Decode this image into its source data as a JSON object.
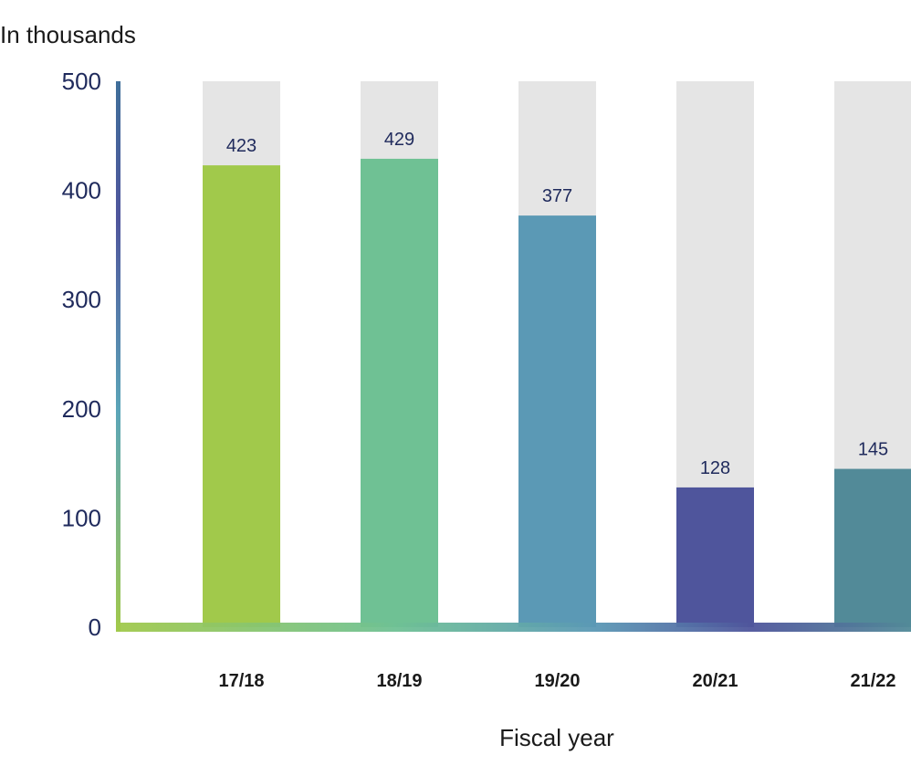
{
  "chart_data": {
    "type": "bar",
    "ylabel": "In thousands",
    "xlabel": "Fiscal year",
    "categories": [
      "17/18",
      "18/19",
      "19/20",
      "20/21",
      "21/22"
    ],
    "values": [
      423,
      429,
      377,
      128,
      145
    ],
    "ylim": [
      0,
      500
    ],
    "yticks": [
      0,
      100,
      200,
      300,
      400,
      500
    ],
    "bar_colors": [
      "#a1c94b",
      "#6fc194",
      "#5b99b5",
      "#4f559c",
      "#528a98"
    ],
    "background_bar_color": "#e5e5e5",
    "label_color": "#1f2a5c",
    "grid": false,
    "legend": "none"
  }
}
